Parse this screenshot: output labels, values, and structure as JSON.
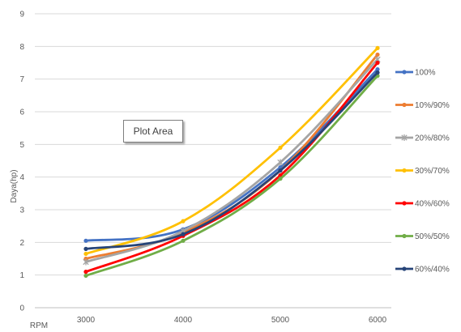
{
  "chart_data": {
    "type": "line",
    "title": "",
    "xlabel": "RPM",
    "ylabel": "Daya(hp)",
    "categories": [
      "3000",
      "4000",
      "5000",
      "6000"
    ],
    "ylim": [
      0,
      9
    ],
    "yticks": [
      0,
      1,
      2,
      3,
      4,
      5,
      6,
      7,
      8,
      9
    ],
    "grid": true,
    "legend": "right",
    "series": [
      {
        "name": "100%",
        "color": "#4472C4",
        "marker": "circle",
        "values": [
          2.05,
          2.4,
          4.3,
          7.3
        ]
      },
      {
        "name": "10%/90%",
        "color": "#ED7D31",
        "marker": "circle",
        "values": [
          1.5,
          2.3,
          4.2,
          7.75
        ]
      },
      {
        "name": "20%/80%",
        "color": "#A5A5A5",
        "marker": "star",
        "values": [
          1.4,
          2.35,
          4.45,
          7.6
        ]
      },
      {
        "name": "30%/70%",
        "color": "#FFC000",
        "marker": "circle",
        "values": [
          1.65,
          2.65,
          4.9,
          7.95
        ]
      },
      {
        "name": "40%/60%",
        "color": "#FF0000",
        "marker": "circle",
        "values": [
          1.1,
          2.2,
          4.05,
          7.5
        ]
      },
      {
        "name": "50%/50%",
        "color": "#70AD47",
        "marker": "circle",
        "values": [
          0.98,
          2.05,
          3.95,
          7.1
        ]
      },
      {
        "name": "60%/40%",
        "color": "#264478",
        "marker": "circle",
        "values": [
          1.8,
          2.25,
          4.2,
          7.2
        ]
      }
    ]
  },
  "tooltip": {
    "label": "Plot Area"
  }
}
